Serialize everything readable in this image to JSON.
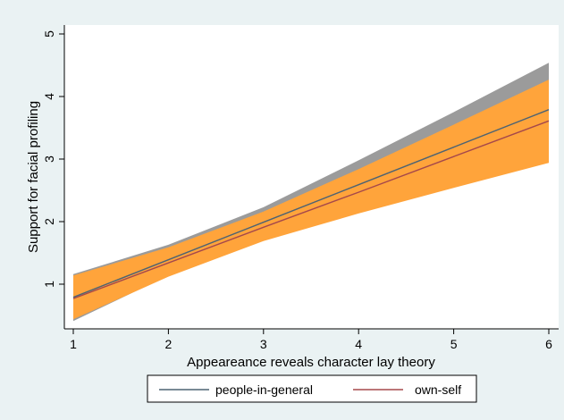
{
  "chart_data": {
    "type": "line",
    "xlabel": "Appeareance reveals character lay theory",
    "ylabel": "Support for facial profiling",
    "xlim": [
      1,
      6
    ],
    "ylim": [
      0.55,
      5
    ],
    "xticks": [
      1,
      2,
      3,
      4,
      5,
      6
    ],
    "yticks": [
      1,
      2,
      3,
      4,
      5
    ],
    "grid": false,
    "legend": "bottom",
    "series": [
      {
        "name": "people-in-general",
        "color": "#4d6373",
        "band_color": "#9b9b9b",
        "x": [
          1,
          2,
          3,
          4,
          5,
          6
        ],
        "y": [
          0.79,
          1.39,
          1.99,
          2.59,
          3.19,
          3.79
        ],
        "lower": [
          0.41,
          1.14,
          1.76,
          2.2,
          2.63,
          3.06
        ],
        "upper": [
          1.16,
          1.63,
          2.23,
          2.98,
          3.75,
          4.54
        ]
      },
      {
        "name": "own-self",
        "color": "#a5484b",
        "band_color": "#ffa43b",
        "x": [
          1,
          2,
          3,
          4,
          5,
          6
        ],
        "y": [
          0.77,
          1.34,
          1.91,
          2.47,
          3.04,
          3.61
        ],
        "lower": [
          0.44,
          1.12,
          1.69,
          2.13,
          2.54,
          2.94
        ],
        "upper": [
          1.14,
          1.59,
          2.16,
          2.84,
          3.55,
          4.27
        ]
      }
    ]
  }
}
